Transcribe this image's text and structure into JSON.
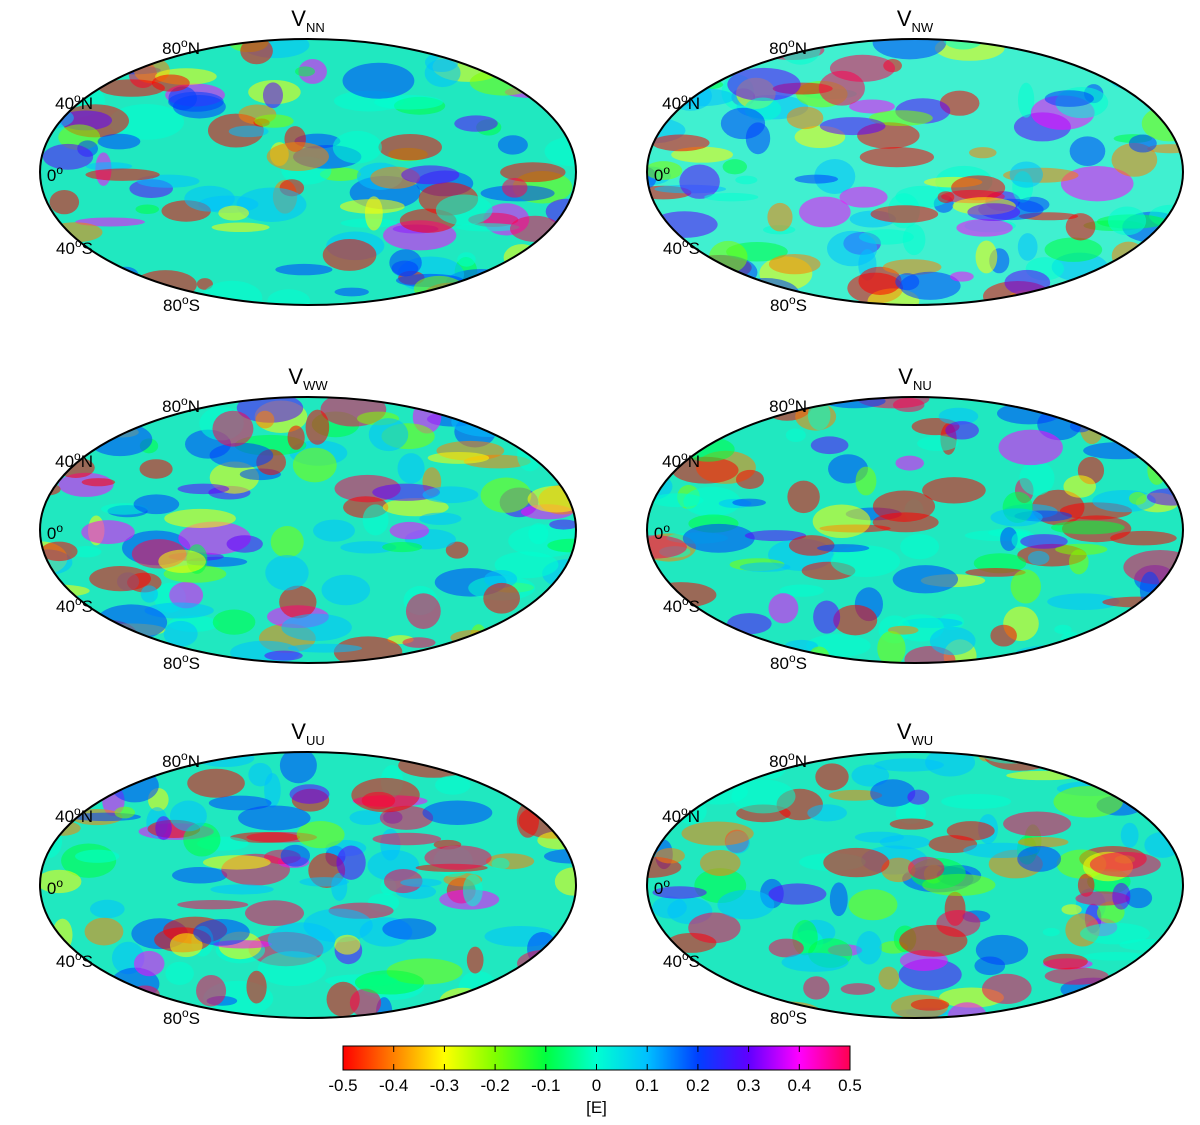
{
  "panels": [
    {
      "title": {
        "main": "V",
        "sub": "NN"
      }
    },
    {
      "title": {
        "main": "V",
        "sub": "NW"
      }
    },
    {
      "title": {
        "main": "V",
        "sub": "WW"
      }
    },
    {
      "title": {
        "main": "V",
        "sub": "NU"
      }
    },
    {
      "title": {
        "main": "V",
        "sub": "UU"
      }
    },
    {
      "title": {
        "main": "V",
        "sub": "WU"
      }
    }
  ],
  "lat_labels": [
    {
      "num": "80",
      "deg": "o",
      "dir": "N"
    },
    {
      "num": "40",
      "deg": "o",
      "dir": "N"
    },
    {
      "num": "0",
      "deg": "o"
    },
    {
      "num": "40",
      "deg": "o",
      "dir": "S"
    },
    {
      "num": "80",
      "deg": "o",
      "dir": "S"
    }
  ],
  "colorbar": {
    "lim": [
      -0.5,
      0.5
    ],
    "ticks": [
      -0.5,
      -0.4,
      -0.3,
      -0.2,
      -0.1,
      0,
      0.1,
      0.2,
      0.3,
      0.4,
      0.5
    ],
    "label": "[E]",
    "colors": [
      "#ff0000",
      "#ff8000",
      "#ffff00",
      "#80ff00",
      "#00ff40",
      "#00ffd0",
      "#00c0ff",
      "#0040ff",
      "#6000ff",
      "#ff00ff",
      "#ff0050"
    ]
  }
}
